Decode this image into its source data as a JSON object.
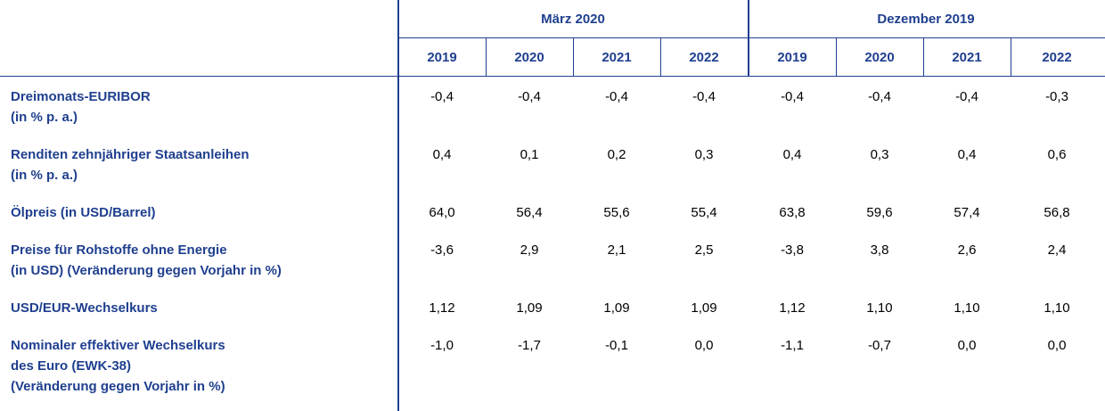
{
  "header": {
    "groups": [
      "März 2020",
      "Dezember 2019"
    ],
    "years": [
      "2019",
      "2020",
      "2021",
      "2022",
      "2019",
      "2020",
      "2021",
      "2022"
    ]
  },
  "rows": [
    {
      "label": [
        "Dreimonats-EURIBOR",
        "(in % p. a.)"
      ],
      "values": [
        "-0,4",
        "-0,4",
        "-0,4",
        "-0,4",
        "-0,4",
        "-0,4",
        "-0,4",
        "-0,3"
      ]
    },
    {
      "label": [
        "Renditen zehnjähriger Staatsanleihen",
        "(in % p. a.)"
      ],
      "values": [
        "0,4",
        "0,1",
        "0,2",
        "0,3",
        "0,4",
        "0,3",
        "0,4",
        "0,6"
      ]
    },
    {
      "label": [
        "Ölpreis (in USD/Barrel)"
      ],
      "values": [
        "64,0",
        "56,4",
        "55,6",
        "55,4",
        "63,8",
        "59,6",
        "57,4",
        "56,8"
      ]
    },
    {
      "label": [
        "Preise für Rohstoffe ohne Energie",
        "(in USD) (Veränderung gegen Vorjahr in %)"
      ],
      "values": [
        "-3,6",
        "2,9",
        "2,1",
        "2,5",
        "-3,8",
        "3,8",
        "2,6",
        "2,4"
      ]
    },
    {
      "label": [
        "USD/EUR-Wechselkurs"
      ],
      "values": [
        "1,12",
        "1,09",
        "1,09",
        "1,09",
        "1,12",
        "1,10",
        "1,10",
        "1,10"
      ]
    },
    {
      "label": [
        "Nominaler effektiver Wechselkurs",
        "des Euro (EWK-38)",
        "(Veränderung gegen Vorjahr in %)"
      ],
      "values": [
        "-1,0",
        "-1,7",
        "-0,1",
        "0,0",
        "-1,1",
        "-0,7",
        "0,0",
        "0,0"
      ]
    }
  ]
}
